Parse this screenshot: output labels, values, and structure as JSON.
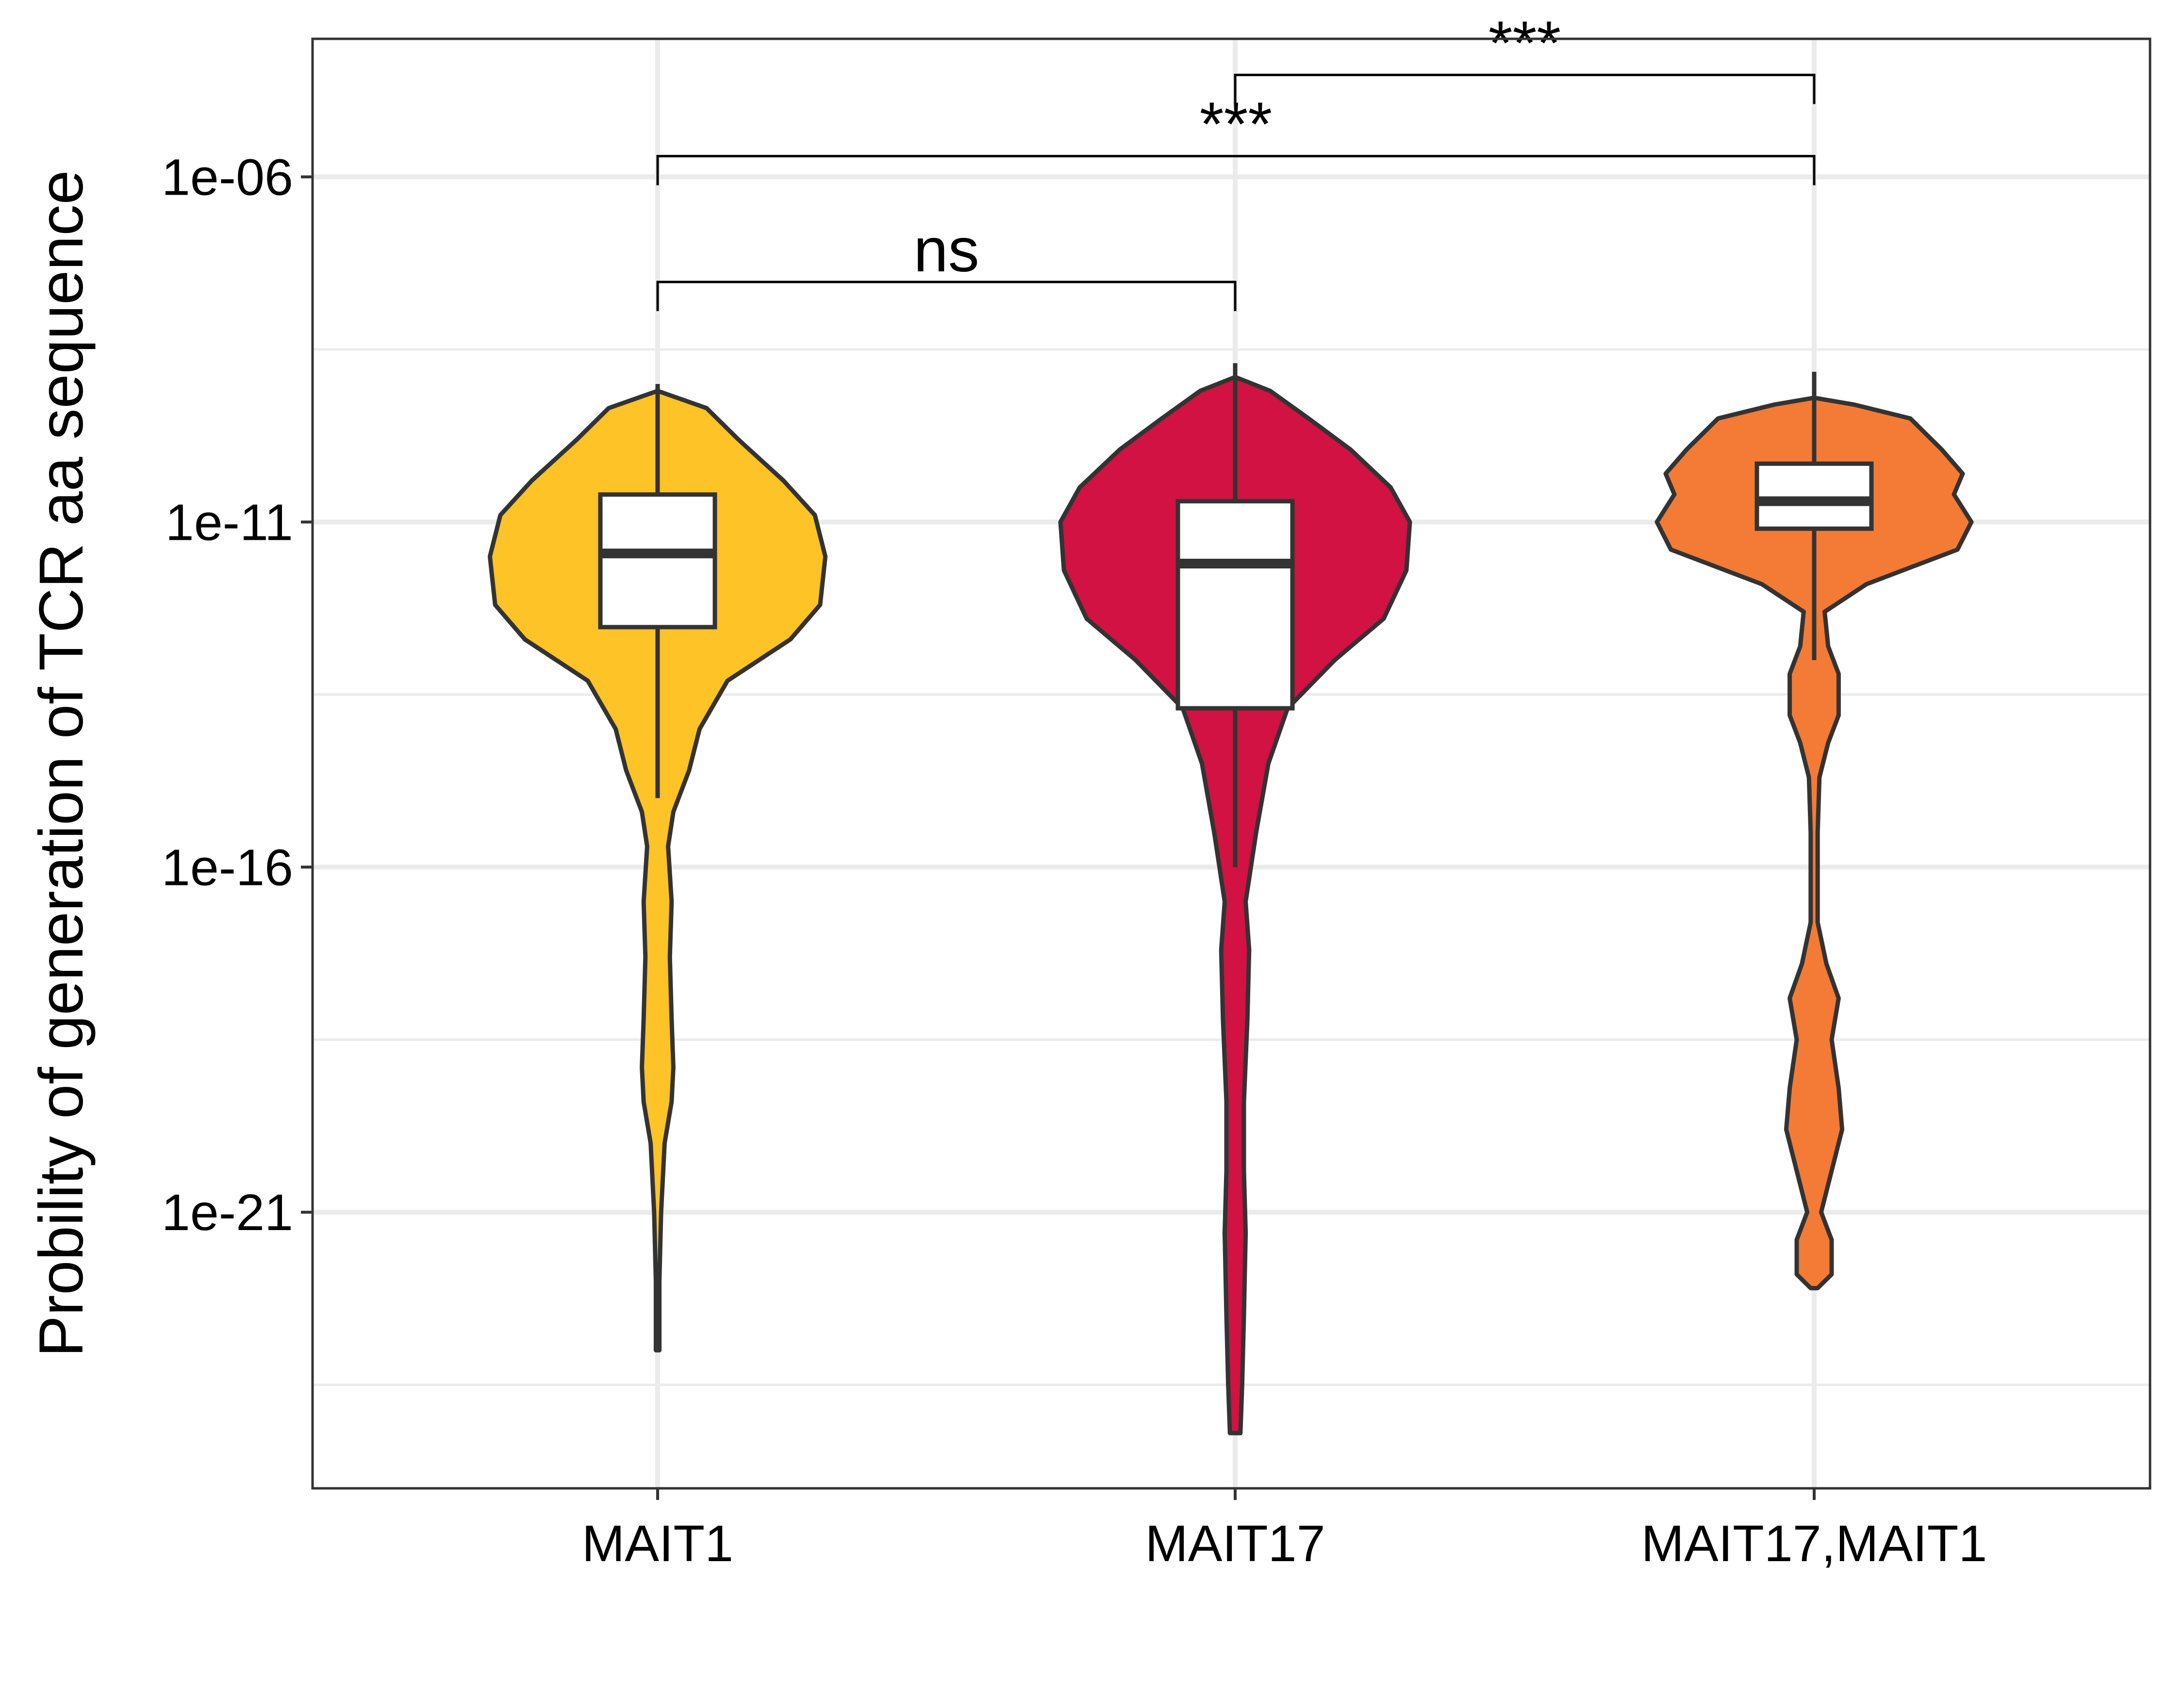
{
  "chart_data": {
    "type": "violin",
    "ylabel": "Probility of generation of TCR aa sequence",
    "y_scale": "log10",
    "ylim": [
      1e-25,
      0.0001
    ],
    "y_ticks": [
      {
        "value": 1e-06,
        "label": "1e-06"
      },
      {
        "value": 1e-11,
        "label": "1e-11"
      },
      {
        "value": 1e-16,
        "label": "1e-16"
      },
      {
        "value": 1e-21,
        "label": "1e-21"
      }
    ],
    "grid": true,
    "legend": "none",
    "categories": [
      "MAIT1",
      "MAIT17",
      "MAIT17,MAIT1"
    ],
    "colors": {
      "MAIT1": "#FDC327",
      "MAIT17": "#D11242",
      "MAIT17,MAIT1": "#F47B35",
      "outline": "#333333",
      "grid": "#EBEBEB",
      "box": "#FFFFFF"
    },
    "series": [
      {
        "category": "MAIT1",
        "min": 1e-23,
        "max": 1e-09,
        "box": {
          "q1": 3e-13,
          "median": 3.5e-12,
          "q3": 2.5e-11
        },
        "whisker_low": 1e-15,
        "density": [
          [
            -23.0,
            0.01
          ],
          [
            -22.0,
            0.01
          ],
          [
            -21.0,
            0.02
          ],
          [
            -20.0,
            0.04
          ],
          [
            -19.4,
            0.08
          ],
          [
            -18.9,
            0.09
          ],
          [
            -18.2,
            0.08
          ],
          [
            -17.3,
            0.07
          ],
          [
            -16.5,
            0.08
          ],
          [
            -15.7,
            0.06
          ],
          [
            -15.2,
            0.09
          ],
          [
            -14.6,
            0.18
          ],
          [
            -14.0,
            0.24
          ],
          [
            -13.3,
            0.4
          ],
          [
            -12.7,
            0.76
          ],
          [
            -12.2,
            0.93
          ],
          [
            -11.5,
            0.96
          ],
          [
            -10.9,
            0.9
          ],
          [
            -10.4,
            0.72
          ],
          [
            -9.8,
            0.46
          ],
          [
            -9.35,
            0.28
          ],
          [
            -9.1,
            0.0
          ]
        ]
      },
      {
        "category": "MAIT17",
        "min": 5e-25,
        "max": 2e-09,
        "box": {
          "q1": 2e-14,
          "median": 2.5e-12,
          "q3": 2e-11
        },
        "whisker_low": 1e-16,
        "density": [
          [
            -24.2,
            0.03
          ],
          [
            -23.5,
            0.04
          ],
          [
            -22.5,
            0.05
          ],
          [
            -21.3,
            0.06
          ],
          [
            -20.4,
            0.05
          ],
          [
            -19.4,
            0.05
          ],
          [
            -18.2,
            0.07
          ],
          [
            -17.2,
            0.08
          ],
          [
            -16.5,
            0.06
          ],
          [
            -15.5,
            0.12
          ],
          [
            -14.5,
            0.19
          ],
          [
            -13.7,
            0.3
          ],
          [
            -13.0,
            0.57
          ],
          [
            -12.4,
            0.85
          ],
          [
            -11.7,
            0.98
          ],
          [
            -11.0,
            1.0
          ],
          [
            -10.5,
            0.89
          ],
          [
            -9.95,
            0.66
          ],
          [
            -9.5,
            0.42
          ],
          [
            -9.1,
            0.2
          ],
          [
            -8.9,
            0.0
          ]
        ]
      },
      {
        "category": "MAIT17,MAIT1",
        "min": 1e-22,
        "max": 1.5e-09,
        "box": {
          "q1": 8e-12,
          "median": 2e-11,
          "q3": 7e-11
        },
        "whisker_low": 1e-13,
        "density": [
          [
            -22.1,
            0.02
          ],
          [
            -21.9,
            0.1
          ],
          [
            -21.4,
            0.1
          ],
          [
            -21.0,
            0.04
          ],
          [
            -20.4,
            0.1
          ],
          [
            -19.8,
            0.16
          ],
          [
            -19.2,
            0.14
          ],
          [
            -18.5,
            0.1
          ],
          [
            -17.9,
            0.14
          ],
          [
            -17.4,
            0.07
          ],
          [
            -16.8,
            0.02
          ],
          [
            -15.5,
            0.02
          ],
          [
            -14.7,
            0.03
          ],
          [
            -14.2,
            0.08
          ],
          [
            -13.8,
            0.14
          ],
          [
            -13.2,
            0.14
          ],
          [
            -12.8,
            0.08
          ],
          [
            -12.3,
            0.06
          ],
          [
            -11.9,
            0.3
          ],
          [
            -11.4,
            0.82
          ],
          [
            -11.0,
            0.9
          ],
          [
            -10.6,
            0.8
          ],
          [
            -10.3,
            0.85
          ],
          [
            -9.95,
            0.73
          ],
          [
            -9.5,
            0.55
          ],
          [
            -9.3,
            0.23
          ],
          [
            -9.2,
            0.0
          ]
        ]
      }
    ],
    "comparisons": [
      {
        "from": "MAIT1",
        "to": "MAIT17",
        "label": "ns",
        "y": 3e-08
      },
      {
        "from": "MAIT1",
        "to": "MAIT17,MAIT1",
        "label": "***",
        "y": 2e-06
      },
      {
        "from": "MAIT17",
        "to": "MAIT17,MAIT1",
        "label": "***",
        "y": 3e-05
      }
    ]
  }
}
